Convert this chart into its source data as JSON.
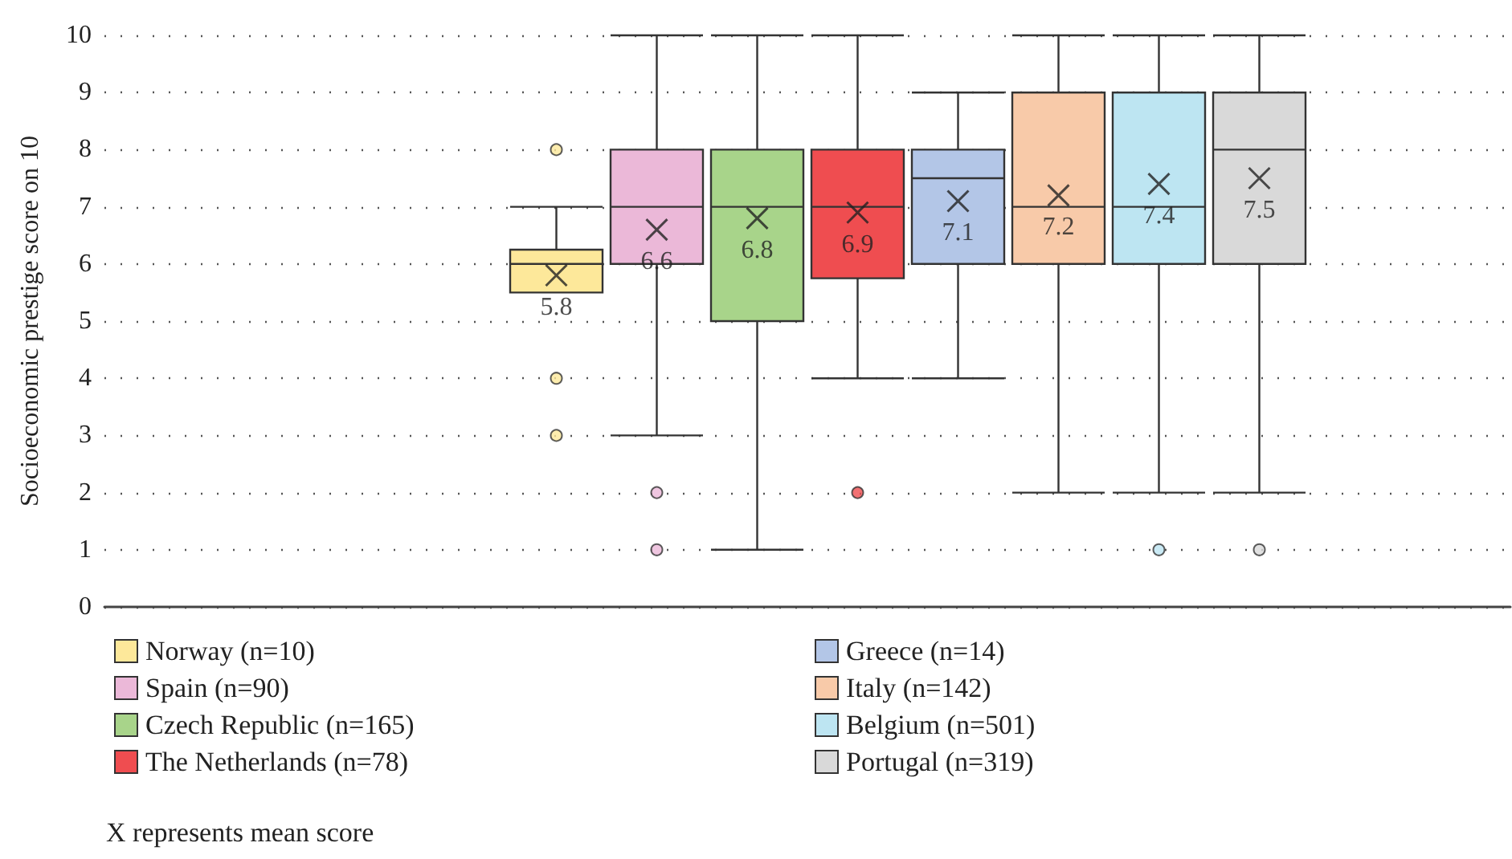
{
  "chart_data": {
    "type": "box",
    "ylabel": "Socioeconomic prestige score on 10",
    "categories": [
      null,
      null,
      null,
      null,
      null,
      null,
      null,
      null,
      null,
      null,
      null,
      null,
      null,
      null
    ],
    "ylim": [
      0,
      10
    ],
    "yticks": [
      0,
      1,
      2,
      3,
      4,
      5,
      6,
      7,
      8,
      9,
      10
    ],
    "grid": "y",
    "legend": "bottom",
    "tick_labels": "y",
    "annotations": [
      "X represents mean score"
    ],
    "series": [
      {
        "name": "Norway (n=10)",
        "color": "#fde89a",
        "value_labels": [
          null,
          null,
          null,
          null,
          "5.8",
          null,
          null,
          null,
          null,
          null,
          null,
          null,
          null,
          null
        ],
        "boxes": [
          null,
          null,
          null,
          null,
          {
            "low": 5.5,
            "q1": 5.5,
            "median": 6,
            "q3": 6.25,
            "high": 7,
            "mean": 5.8,
            "outliers": [
              8,
              4,
              3
            ]
          },
          null,
          null,
          null,
          null,
          null,
          null,
          null,
          null,
          null
        ]
      },
      {
        "name": "Spain (n=90)",
        "color": "#ebb8d8",
        "value_labels": [
          null,
          null,
          null,
          null,
          null,
          "6.6",
          null,
          null,
          null,
          null,
          null,
          null,
          null,
          null
        ],
        "boxes": [
          null,
          null,
          null,
          null,
          null,
          {
            "low": 3,
            "q1": 6,
            "median": 7,
            "q3": 8,
            "high": 10,
            "mean": 6.6,
            "outliers": [
              2,
              1
            ]
          },
          null,
          null,
          null,
          null,
          null,
          null,
          null,
          null
        ]
      },
      {
        "name": "Czech Republic (n=165)",
        "color": "#a8d48a",
        "value_labels": [
          null,
          null,
          null,
          null,
          null,
          null,
          "6.8",
          null,
          null,
          null,
          null,
          null,
          null,
          null
        ],
        "boxes": [
          null,
          null,
          null,
          null,
          null,
          null,
          {
            "low": 1,
            "q1": 5,
            "median": 7,
            "q3": 8,
            "high": 10,
            "mean": 6.8
          },
          null,
          null,
          null,
          null,
          null,
          null,
          null
        ]
      },
      {
        "name": "The Netherlands (n=78)",
        "color": "#ef4d50",
        "value_labels": [
          null,
          null,
          null,
          null,
          null,
          null,
          null,
          "6.9",
          null,
          null,
          null,
          null,
          null,
          null
        ],
        "boxes": [
          null,
          null,
          null,
          null,
          null,
          null,
          null,
          {
            "low": 4,
            "q1": 5.75,
            "median": 7,
            "q3": 8,
            "high": 10,
            "mean": 6.9,
            "outliers": [
              2
            ]
          },
          null,
          null,
          null,
          null,
          null,
          null
        ]
      },
      {
        "name": "Greece (n=14)",
        "color": "#b3c6e7",
        "value_labels": [
          null,
          null,
          null,
          null,
          null,
          null,
          null,
          null,
          "7.1",
          null,
          null,
          null,
          null,
          null
        ],
        "boxes": [
          null,
          null,
          null,
          null,
          null,
          null,
          null,
          null,
          {
            "low": 4,
            "q1": 6,
            "median": 7.5,
            "q3": 8,
            "high": 9,
            "mean": 7.1
          },
          null,
          null,
          null,
          null,
          null
        ]
      },
      {
        "name": "Italy (n=142)",
        "color": "#f8caa9",
        "value_labels": [
          null,
          null,
          null,
          null,
          null,
          null,
          null,
          null,
          null,
          "7.2",
          null,
          null,
          null,
          null
        ],
        "boxes": [
          null,
          null,
          null,
          null,
          null,
          null,
          null,
          null,
          null,
          {
            "low": 2,
            "q1": 6,
            "median": 7,
            "q3": 9,
            "high": 10,
            "mean": 7.2
          },
          null,
          null,
          null,
          null
        ]
      },
      {
        "name": "Belgium (n=501)",
        "color": "#bde5f2",
        "value_labels": [
          null,
          null,
          null,
          null,
          null,
          null,
          null,
          null,
          null,
          null,
          "7.4",
          null,
          null,
          null
        ],
        "boxes": [
          null,
          null,
          null,
          null,
          null,
          null,
          null,
          null,
          null,
          null,
          {
            "low": 2,
            "q1": 6,
            "median": 7,
            "q3": 9,
            "high": 10,
            "mean": 7.4,
            "outliers": [
              1
            ]
          },
          null,
          null,
          null
        ]
      },
      {
        "name": "Portugal (n=319)",
        "color": "#d9d9d9",
        "value_labels": [
          null,
          null,
          null,
          null,
          null,
          null,
          null,
          null,
          null,
          null,
          null,
          "7.5",
          null,
          null
        ],
        "boxes": [
          null,
          null,
          null,
          null,
          null,
          null,
          null,
          null,
          null,
          null,
          null,
          {
            "low": 2,
            "q1": 6,
            "median": 8,
            "q3": 9,
            "high": 10,
            "mean": 7.5,
            "outliers": [
              1
            ]
          },
          null,
          null
        ]
      }
    ]
  }
}
